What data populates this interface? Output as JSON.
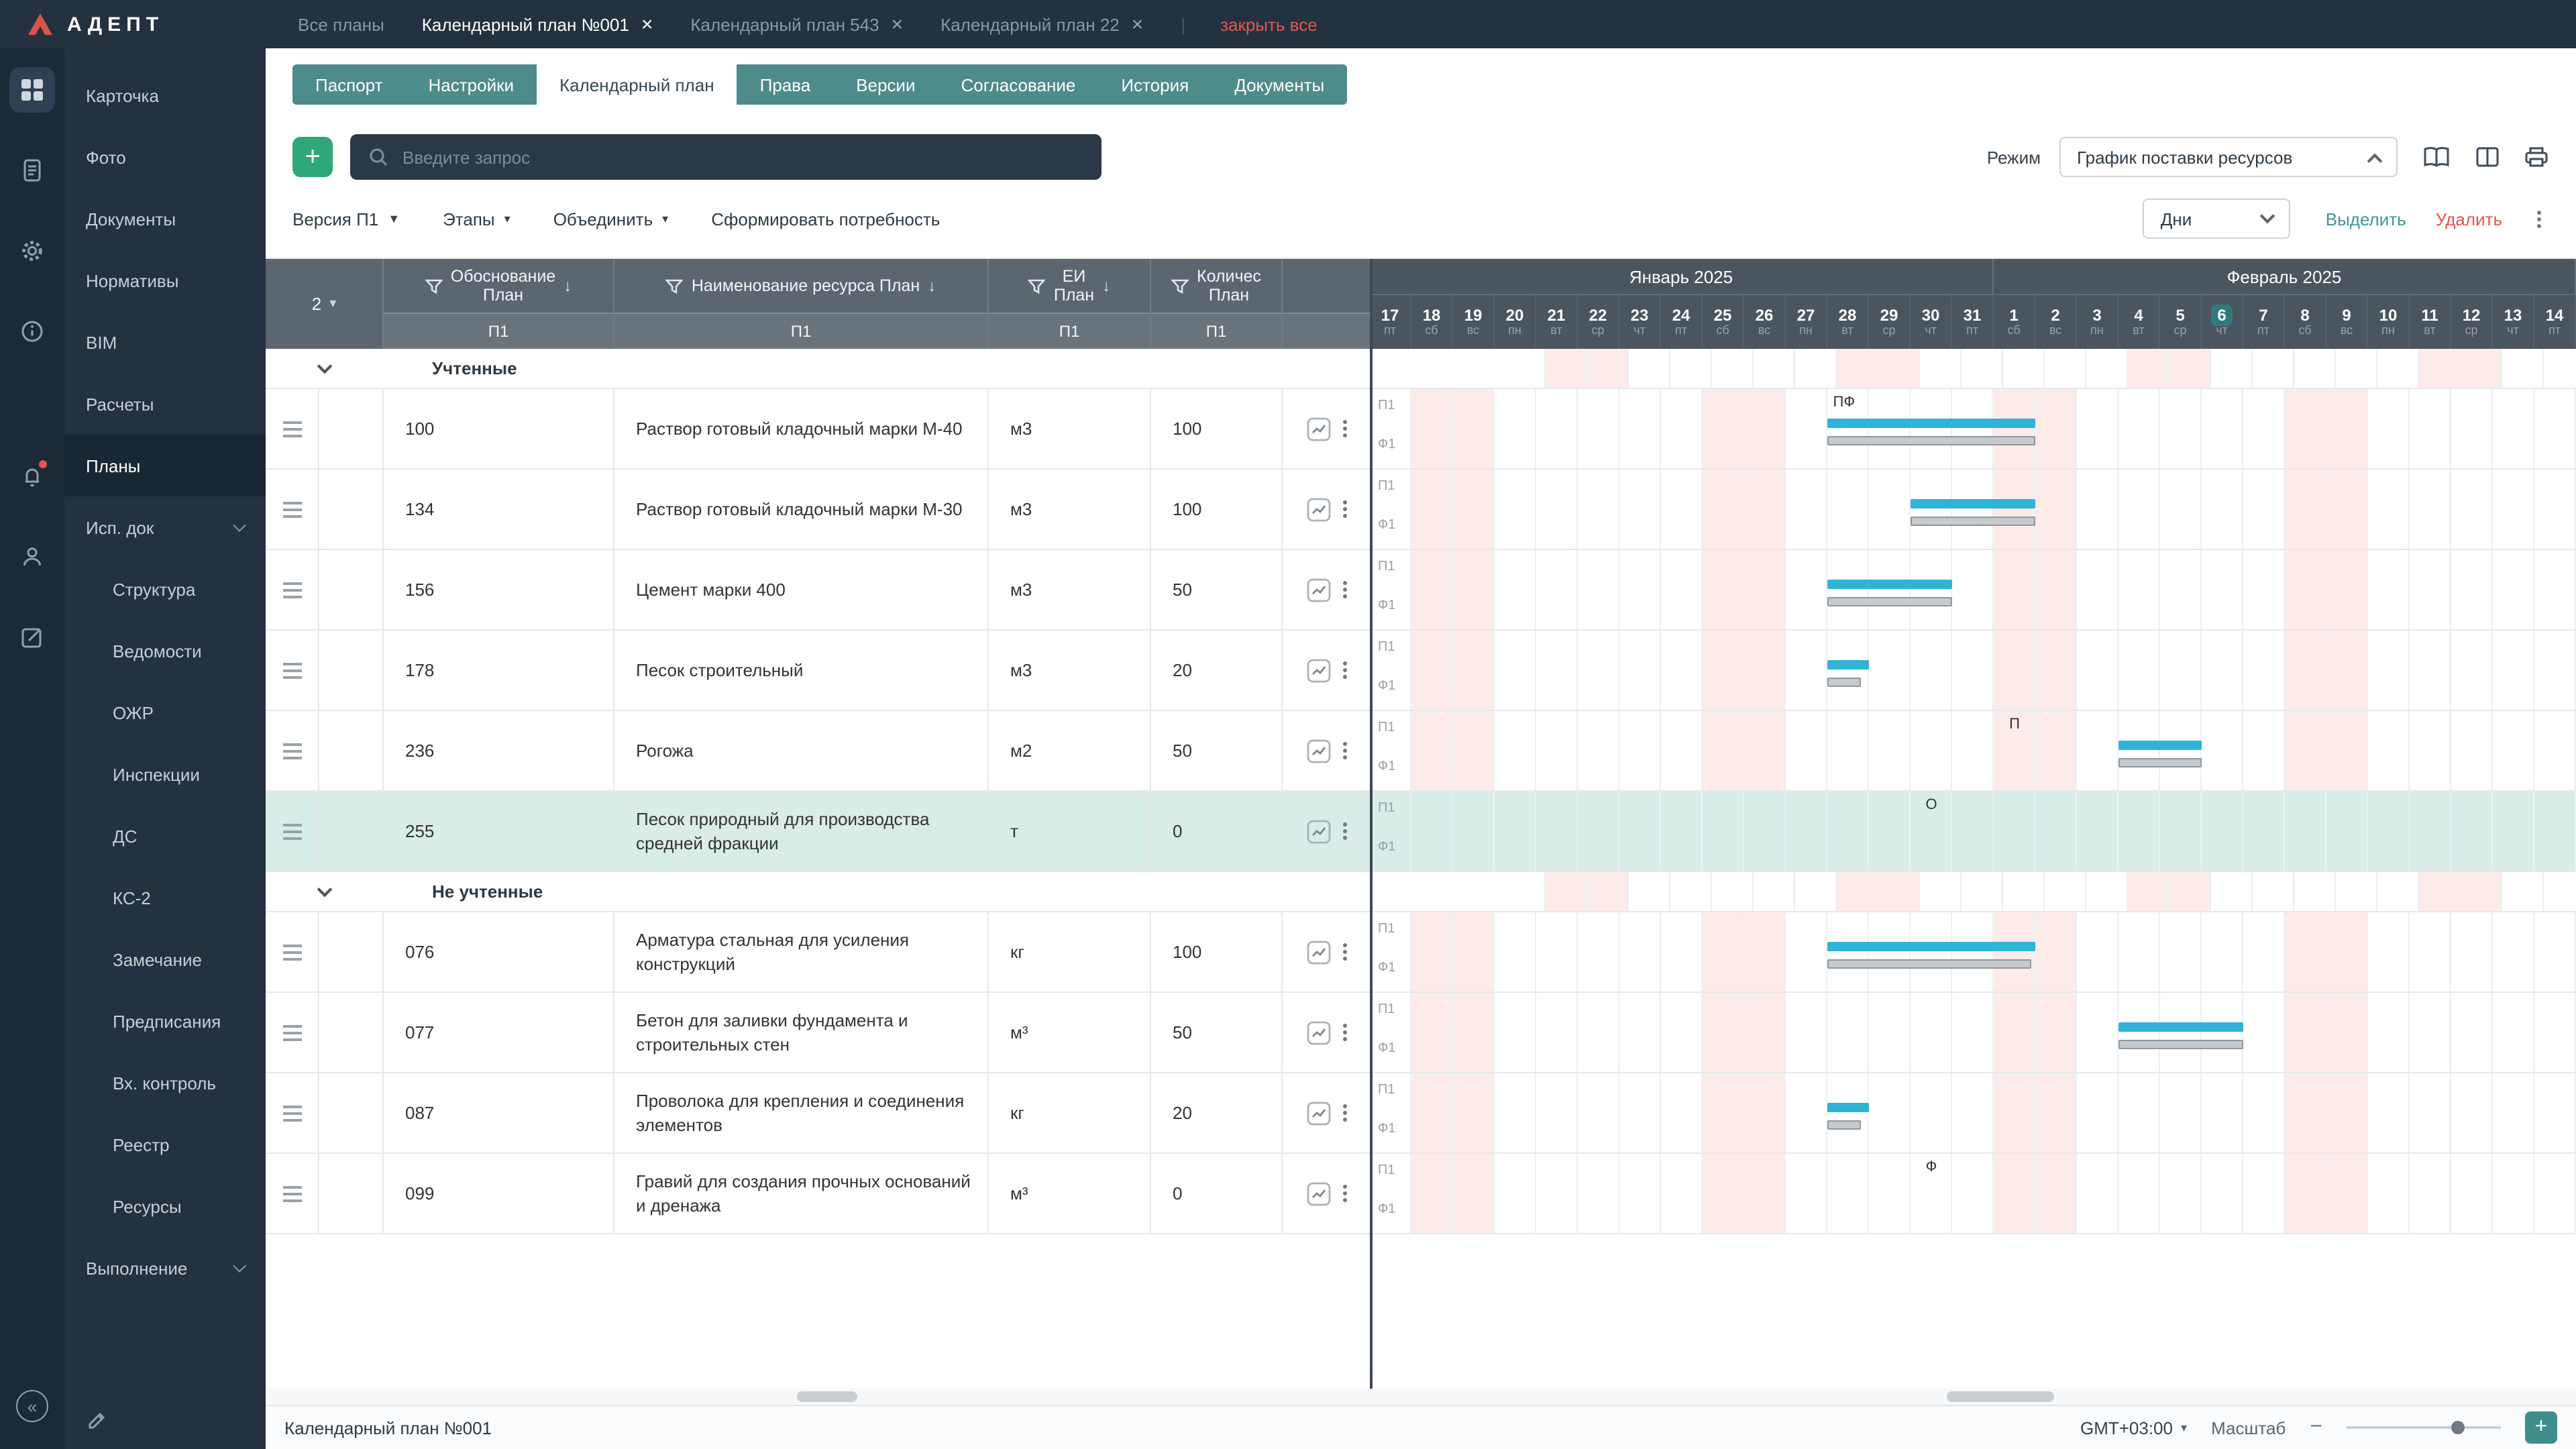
{
  "topbar": {
    "logo": "АДЕПТ",
    "tabs": [
      {
        "label": "Все планы",
        "closable": false,
        "active": false
      },
      {
        "label": "Календарный план №001",
        "closable": true,
        "active": true
      },
      {
        "label": "Календарный план 543",
        "closable": true,
        "active": false
      },
      {
        "label": "Календарный план 22",
        "closable": true,
        "active": false
      }
    ],
    "separator": "|",
    "close_all": "закрыть все"
  },
  "sidebar": {
    "items": [
      {
        "label": "Карточка"
      },
      {
        "label": "Фото"
      },
      {
        "label": "Документы"
      },
      {
        "label": "Нормативы"
      },
      {
        "label": "BIM"
      },
      {
        "label": "Расчеты"
      },
      {
        "label": "Планы",
        "active": true
      },
      {
        "label": "Исп. док",
        "expandable": true,
        "expanded": true
      },
      {
        "label": "Структура",
        "child": true
      },
      {
        "label": "Ведомости",
        "child": true
      },
      {
        "label": "ОЖР",
        "child": true
      },
      {
        "label": "Инспекции",
        "child": true
      },
      {
        "label": "ДС",
        "child": true
      },
      {
        "label": "КС-2",
        "child": true
      },
      {
        "label": "Замечание",
        "child": true
      },
      {
        "label": "Предписания",
        "child": true
      },
      {
        "label": "Вх. контроль",
        "child": true
      },
      {
        "label": "Реестр",
        "child": true
      },
      {
        "label": "Ресурсы",
        "child": true
      },
      {
        "label": "Выполнение",
        "expandable": true,
        "expanded": false
      }
    ]
  },
  "page_tabs": [
    {
      "label": "Паспорт"
    },
    {
      "label": "Настройки"
    },
    {
      "label": "Календарный план",
      "active": true
    },
    {
      "label": "Права"
    },
    {
      "label": "Версии"
    },
    {
      "label": "Согласование"
    },
    {
      "label": "История"
    },
    {
      "label": "Документы"
    }
  ],
  "search": {
    "placeholder": "Введите запрос"
  },
  "mode": {
    "label": "Режим",
    "value": "График поставки ресурсов"
  },
  "toolbar": {
    "version": "Версия П1",
    "stages": "Этапы",
    "merge": "Объединить",
    "form_demand": "Сформировать потребность",
    "scale": "Дни",
    "select": "Выделить",
    "delete": "Удалить"
  },
  "table": {
    "count_badge": "2",
    "columns": [
      {
        "label": "Обоснование\nПлан"
      },
      {
        "label": "Наименование ресурса План"
      },
      {
        "label": "ЕИ\nПлан"
      },
      {
        "label": "Количес\nПлан"
      }
    ],
    "subheader": "П1",
    "groups": [
      {
        "label": "Учтенные",
        "rows": [
          {
            "code": "100",
            "name": "Раствор готовый кладочный марки М-40",
            "unit": "м3",
            "qty": "100",
            "gantt": {
              "plan": [
                11,
                16
              ],
              "fact": [
                11,
                16
              ],
              "marker": {
                "text": "ПФ",
                "day": 11.4
              }
            }
          },
          {
            "code": "134",
            "name": "Раствор готовый кладочный марки М-30",
            "unit": "м3",
            "qty": "100",
            "gantt": {
              "plan": [
                13,
                16
              ],
              "fact": [
                13,
                16
              ]
            }
          },
          {
            "code": "156",
            "name": "Цемент марки 400",
            "unit": "м3",
            "qty": "50",
            "gantt": {
              "plan": [
                11,
                14
              ],
              "fact": [
                11,
                14
              ]
            }
          },
          {
            "code": "178",
            "name": "Песок строительный",
            "unit": "м3",
            "qty": "20",
            "gantt": {
              "plan": [
                11,
                12
              ],
              "fact": [
                11,
                11.8
              ]
            }
          },
          {
            "code": "236",
            "name": "Рогожа",
            "unit": "м2",
            "qty": "50",
            "gantt": {
              "plan": [
                18,
                20
              ],
              "fact": [
                18,
                20
              ],
              "marker": {
                "text": "П",
                "day": 15.5
              }
            }
          },
          {
            "code": "255",
            "name": "Песок природный для производства средней фракции",
            "unit": "т",
            "qty": "0",
            "selected": true,
            "gantt": {
              "marker": {
                "text": "О",
                "day": 13.5
              }
            }
          }
        ]
      },
      {
        "label": "Не учтенные",
        "rows": [
          {
            "code": "076",
            "name": "Арматура стальная для усиления конструкций",
            "unit": "кг",
            "qty": "100",
            "gantt": {
              "plan": [
                11,
                16
              ],
              "fact": [
                11,
                15.9
              ]
            }
          },
          {
            "code": "077",
            "name": "Бетон для заливки фундамента и строительных стен",
            "unit": "м³",
            "qty": "50",
            "gantt": {
              "plan": [
                18,
                21
              ],
              "fact": [
                18,
                21
              ]
            }
          },
          {
            "code": "087",
            "name": "Проволока для крепления и соединения элементов",
            "unit": "кг",
            "qty": "20",
            "gantt": {
              "plan": [
                11,
                12
              ],
              "fact": [
                11,
                11.8
              ]
            }
          },
          {
            "code": "099",
            "name": "Гравий для создания прочных оснований и дренажа",
            "unit": "м³",
            "qty": "0",
            "gantt": {
              "marker": {
                "text": "Ф",
                "day": 13.5
              }
            }
          }
        ]
      }
    ]
  },
  "gantt": {
    "day_width": 31,
    "plan_label": "П1",
    "fact_label": "Ф1",
    "months": [
      {
        "label": "Январь 2025",
        "days": 15
      },
      {
        "label": "Февраль 2025",
        "days": 14
      }
    ],
    "days": [
      {
        "num": "17",
        "dow": "пт"
      },
      {
        "num": "18",
        "dow": "сб",
        "weekend": true
      },
      {
        "num": "19",
        "dow": "вс",
        "weekend": true
      },
      {
        "num": "20",
        "dow": "пн"
      },
      {
        "num": "21",
        "dow": "вт"
      },
      {
        "num": "22",
        "dow": "ср"
      },
      {
        "num": "23",
        "dow": "чт"
      },
      {
        "num": "24",
        "dow": "пт"
      },
      {
        "num": "25",
        "dow": "сб",
        "weekend": true
      },
      {
        "num": "26",
        "dow": "вс",
        "weekend": true
      },
      {
        "num": "27",
        "dow": "пн"
      },
      {
        "num": "28",
        "dow": "вт"
      },
      {
        "num": "29",
        "dow": "ср"
      },
      {
        "num": "30",
        "dow": "чт"
      },
      {
        "num": "31",
        "dow": "пт"
      },
      {
        "num": "1",
        "dow": "сб",
        "weekend": true
      },
      {
        "num": "2",
        "dow": "вс",
        "weekend": true
      },
      {
        "num": "3",
        "dow": "пн"
      },
      {
        "num": "4",
        "dow": "вт"
      },
      {
        "num": "5",
        "dow": "ср"
      },
      {
        "num": "6",
        "dow": "чт",
        "today": true
      },
      {
        "num": "7",
        "dow": "пт"
      },
      {
        "num": "8",
        "dow": "сб",
        "weekend": true
      },
      {
        "num": "9",
        "dow": "вс",
        "weekend": true
      },
      {
        "num": "10",
        "dow": "пн"
      },
      {
        "num": "11",
        "dow": "вт"
      },
      {
        "num": "12",
        "dow": "ср"
      },
      {
        "num": "13",
        "dow": "чт"
      },
      {
        "num": "14",
        "dow": "пт"
      }
    ]
  },
  "statusbar": {
    "title": "Календарный план №001",
    "timezone": "GMT+03:00",
    "zoom_label": "Масштаб"
  }
}
